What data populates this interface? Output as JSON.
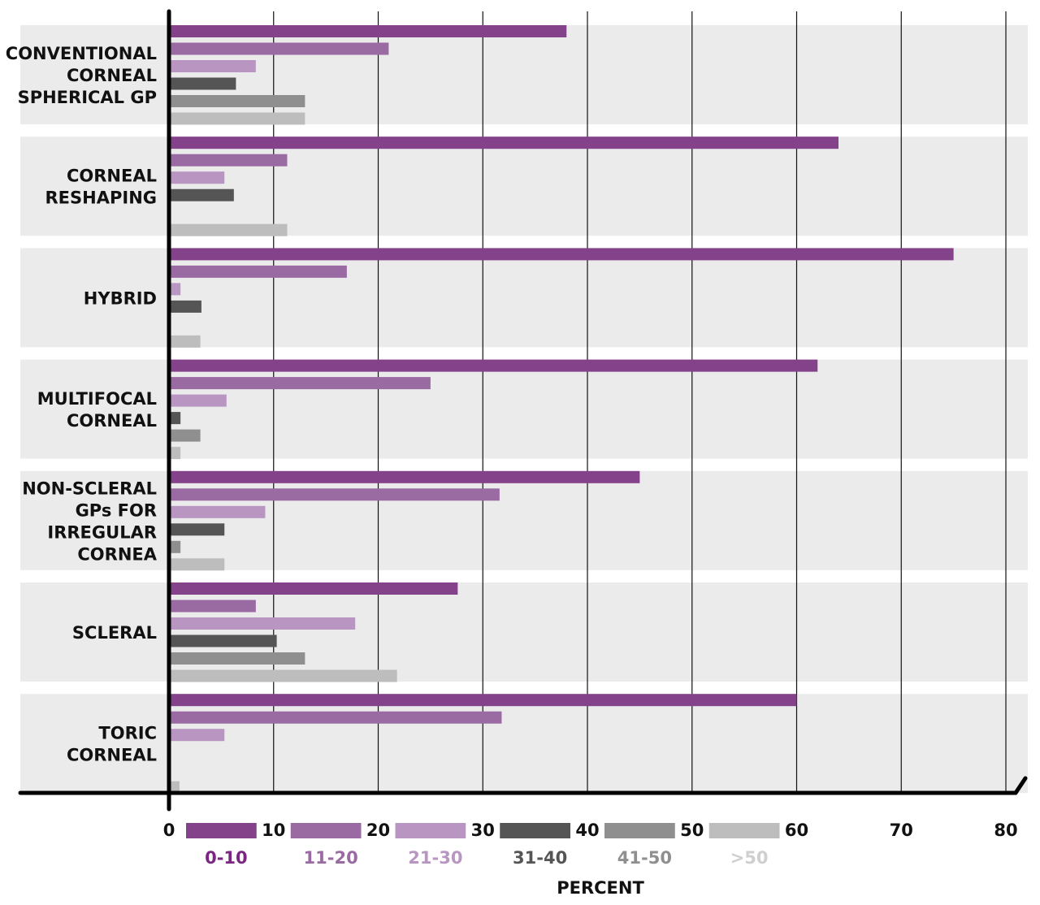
{
  "chart_data": {
    "type": "bar",
    "orientation": "horizontal",
    "title": "",
    "xlabel": "PERCENT",
    "ylabel": "",
    "xlim": [
      0,
      80
    ],
    "xticks": [
      0,
      10,
      20,
      30,
      40,
      50,
      60,
      70,
      80
    ],
    "grid": true,
    "legend_position": "bottom",
    "categories": [
      "CONVENTIONAL CORNEAL SPHERICAL GP",
      "CORNEAL RESHAPING",
      "HYBRID",
      "MULTIFOCAL CORNEAL",
      "NON-SCLERAL GPs FOR IRREGULAR CORNEA",
      "SCLERAL",
      "TORIC CORNEAL"
    ],
    "category_lines": [
      [
        "CONVENTIONAL",
        "CORNEAL",
        "SPHERICAL GP"
      ],
      [
        "CORNEAL",
        "RESHAPING"
      ],
      [
        "HYBRID"
      ],
      [
        "MULTIFOCAL",
        "CORNEAL"
      ],
      [
        "NON-SCLERAL",
        "GPs FOR",
        "IRREGULAR",
        "CORNEA"
      ],
      [
        "SCLERAL"
      ],
      [
        "TORIC",
        "CORNEAL"
      ]
    ],
    "series": [
      {
        "name": "0-10",
        "color": "#84428a",
        "values": [
          38,
          64,
          75,
          62,
          45,
          27.6,
          60
        ]
      },
      {
        "name": "11-20",
        "color": "#9a6aa3",
        "values": [
          21,
          11.3,
          17,
          25,
          31.6,
          8.3,
          31.8
        ]
      },
      {
        "name": "21-30",
        "color": "#b896c1",
        "values": [
          8.3,
          5.3,
          1.1,
          5.5,
          9.2,
          17.8,
          5.3
        ]
      },
      {
        "name": "31-40",
        "color": "#555555",
        "values": [
          6.4,
          6.2,
          3.1,
          1.1,
          5.3,
          10.3,
          0
        ]
      },
      {
        "name": "41-50",
        "color": "#8f8f8f",
        "values": [
          13,
          0,
          0,
          3,
          1.1,
          13,
          0
        ]
      },
      {
        "name": ">50",
        "color": "#bdbdbd",
        "values": [
          13,
          11.3,
          3,
          1.1,
          5.3,
          21.8,
          1
        ]
      }
    ],
    "legend_label_colors": [
      "#7a2782",
      "#9a6aa3",
      "#b896c1",
      "#555555",
      "#8f8f8f",
      "#cfcfcf"
    ]
  }
}
